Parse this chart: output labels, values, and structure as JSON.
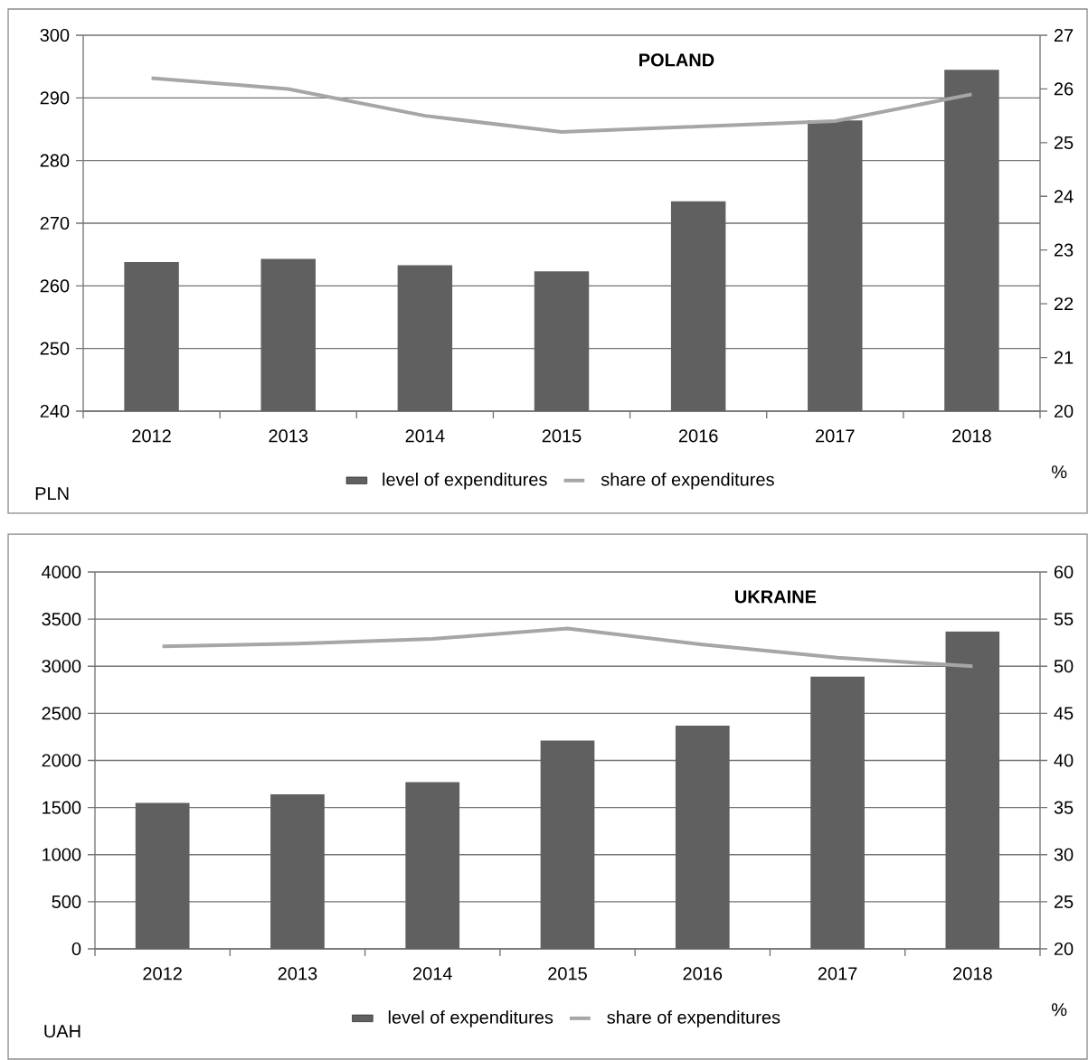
{
  "chart_data": [
    {
      "type": "bar",
      "title": "POLAND",
      "categories": [
        "2012",
        "2013",
        "2014",
        "2015",
        "2016",
        "2017",
        "2018"
      ],
      "ylabel": "PLN",
      "y2label": "%",
      "ylim": [
        240,
        300
      ],
      "yticks": [
        240,
        250,
        260,
        270,
        280,
        290,
        300
      ],
      "y2lim": [
        20,
        27
      ],
      "y2ticks": [
        20,
        21,
        22,
        23,
        24,
        25,
        26,
        27
      ],
      "grid": "y",
      "legend": "bottom",
      "series": [
        {
          "name": "level of expenditures",
          "color": "#606060",
          "values": [
            263.8,
            264.3,
            263.3,
            262.3,
            273.5,
            286.4,
            294.5
          ]
        },
        {
          "name": "share of expenditures",
          "type": "line",
          "axis": "y2",
          "color": "#a6a6a6",
          "values": [
            26.2,
            26.0,
            25.5,
            25.2,
            25.3,
            25.4,
            25.9
          ]
        }
      ]
    },
    {
      "type": "bar",
      "title": "UKRAINE",
      "categories": [
        "2012",
        "2013",
        "2014",
        "2015",
        "2016",
        "2017",
        "2018"
      ],
      "ylabel": "UAH",
      "y2label": "%",
      "ylim": [
        0,
        4000
      ],
      "yticks": [
        0,
        500,
        1000,
        1500,
        2000,
        2500,
        3000,
        3500,
        4000
      ],
      "y2lim": [
        20,
        60
      ],
      "y2ticks": [
        20,
        25,
        30,
        35,
        40,
        45,
        50,
        55,
        60
      ],
      "grid": "y",
      "legend": "bottom",
      "series": [
        {
          "name": "level of expenditures",
          "color": "#606060",
          "values": [
            1550,
            1640,
            1770,
            2210,
            2370,
            2890,
            3370
          ]
        },
        {
          "name": "share of expenditures",
          "type": "line",
          "axis": "y2",
          "color": "#a6a6a6",
          "values": [
            52.1,
            52.4,
            52.9,
            54.0,
            52.3,
            50.9,
            50.0
          ]
        }
      ]
    }
  ]
}
